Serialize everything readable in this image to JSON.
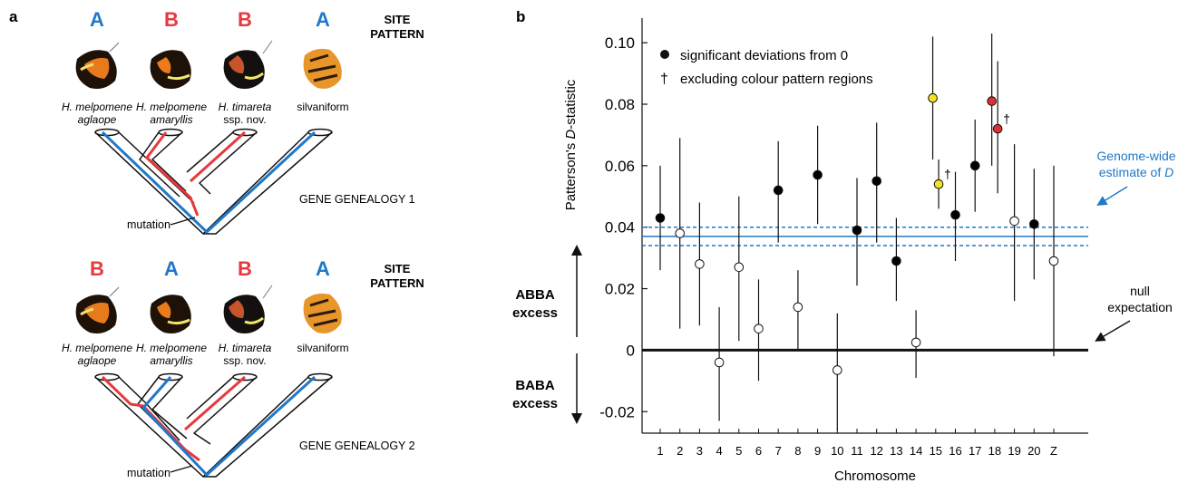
{
  "panel_a": {
    "label": "a",
    "site_pattern_label": [
      "SITE",
      "PATTERN"
    ],
    "gene_genealogy_1": "GENE GENEALOGY 1",
    "gene_genealogy_2": "GENE GENEALOGY 2",
    "mutation_label": "mutation",
    "pattern_1": [
      "A",
      "B",
      "B",
      "A"
    ],
    "pattern_2": [
      "B",
      "A",
      "B",
      "A"
    ],
    "taxa": [
      {
        "line1": "H. melpomene",
        "line2": "aglaope",
        "italic": true
      },
      {
        "line1": "H. melpomene",
        "line2": "amaryllis",
        "italic": true
      },
      {
        "line1": "H. timareta",
        "line2": "ssp. nov.",
        "italic_first_only": true
      },
      {
        "line1": "silvaniform",
        "line2": "",
        "italic": false
      }
    ],
    "colors": {
      "A": "#1f78c8",
      "B": "#e8383d",
      "tree": "#111111"
    },
    "butterfly_icons": [
      "butterfly-melpomene-aglaope-icon",
      "butterfly-melpomene-amaryllis-icon",
      "butterfly-timareta-icon",
      "butterfly-silvaniform-icon"
    ]
  },
  "chart_data": {
    "type": "scatter",
    "panel_label": "b",
    "ylabel_prefix": "Patterson's ",
    "ylabel_italic": "D",
    "ylabel_suffix": "-statistic",
    "xlabel": "Chromosome",
    "ylim": [
      -0.027,
      0.108
    ],
    "yticks": [
      -0.02,
      0,
      0.02,
      0.04,
      0.06,
      0.08,
      0.1
    ],
    "ytick_labels": [
      "-0.02",
      "0",
      "0.02",
      "0.04",
      "0.06",
      "0.08",
      "0.10"
    ],
    "categories": [
      "1",
      "2",
      "3",
      "4",
      "5",
      "6",
      "7",
      "8",
      "9",
      "10",
      "11",
      "12",
      "13",
      "14",
      "15",
      "16",
      "17",
      "18",
      "19",
      "20",
      "Z"
    ],
    "points": [
      {
        "x": "1",
        "y": 0.043,
        "lo": 0.026,
        "hi": 0.06,
        "fill": "black"
      },
      {
        "x": "2",
        "y": 0.038,
        "lo": 0.007,
        "hi": 0.069,
        "fill": "white"
      },
      {
        "x": "3",
        "y": 0.028,
        "lo": 0.008,
        "hi": 0.048,
        "fill": "white"
      },
      {
        "x": "4",
        "y": -0.004,
        "lo": -0.023,
        "hi": 0.014,
        "fill": "white"
      },
      {
        "x": "5",
        "y": 0.027,
        "lo": 0.003,
        "hi": 0.05,
        "fill": "white"
      },
      {
        "x": "6",
        "y": 0.007,
        "lo": -0.01,
        "hi": 0.023,
        "fill": "white"
      },
      {
        "x": "7",
        "y": 0.052,
        "lo": 0.035,
        "hi": 0.068,
        "fill": "black"
      },
      {
        "x": "8",
        "y": 0.014,
        "lo": 0.0,
        "hi": 0.026,
        "fill": "white"
      },
      {
        "x": "9",
        "y": 0.057,
        "lo": 0.041,
        "hi": 0.073,
        "fill": "black"
      },
      {
        "x": "10",
        "y": -0.0065,
        "lo": -0.026,
        "hi": 0.012,
        "fill": "white"
      },
      {
        "x": "11",
        "y": 0.039,
        "lo": 0.021,
        "hi": 0.056,
        "fill": "black"
      },
      {
        "x": "12",
        "y": 0.055,
        "lo": 0.035,
        "hi": 0.074,
        "fill": "black"
      },
      {
        "x": "13",
        "y": 0.029,
        "lo": 0.016,
        "hi": 0.043,
        "fill": "black"
      },
      {
        "x": "14",
        "y": 0.0025,
        "lo": -0.009,
        "hi": 0.013,
        "fill": "white"
      },
      {
        "x": "15",
        "y": 0.082,
        "lo": 0.062,
        "hi": 0.102,
        "fill": "#f2e424",
        "offset": -0.15
      },
      {
        "x": "15",
        "y": 0.054,
        "lo": 0.046,
        "hi": 0.062,
        "fill": "#f2e424",
        "offset": 0.15,
        "dagger": true
      },
      {
        "x": "16",
        "y": 0.044,
        "lo": 0.029,
        "hi": 0.058,
        "fill": "black"
      },
      {
        "x": "17",
        "y": 0.06,
        "lo": 0.045,
        "hi": 0.075,
        "fill": "black"
      },
      {
        "x": "18",
        "y": 0.081,
        "lo": 0.06,
        "hi": 0.103,
        "fill": "#e03030",
        "offset": -0.15
      },
      {
        "x": "18",
        "y": 0.072,
        "lo": 0.051,
        "hi": 0.094,
        "fill": "#e03030",
        "offset": 0.15,
        "dagger": true
      },
      {
        "x": "19",
        "y": 0.042,
        "lo": 0.016,
        "hi": 0.067,
        "fill": "white"
      },
      {
        "x": "20",
        "y": 0.041,
        "lo": 0.023,
        "hi": 0.059,
        "fill": "black"
      },
      {
        "x": "Z",
        "y": 0.029,
        "lo": -0.002,
        "hi": 0.06,
        "fill": "white"
      }
    ],
    "genome_wide": {
      "value": 0.037,
      "lo": 0.034,
      "hi": 0.04,
      "color": "#1f78c8"
    },
    "legend": [
      {
        "symbol": "●",
        "text": "significant deviations from 0"
      },
      {
        "symbol": "†",
        "text": "excluding colour pattern regions"
      }
    ],
    "annotations": {
      "genome_wide_line1": "Genome-wide",
      "genome_wide_line2_prefix": "estimate of ",
      "genome_wide_line2_italic": "D",
      "null_line1": "null",
      "null_line2": "expectation",
      "abba_line1": "ABBA",
      "abba_line2": "excess",
      "baba_line1": "BABA",
      "baba_line2": "excess",
      "dagger": "†"
    }
  }
}
